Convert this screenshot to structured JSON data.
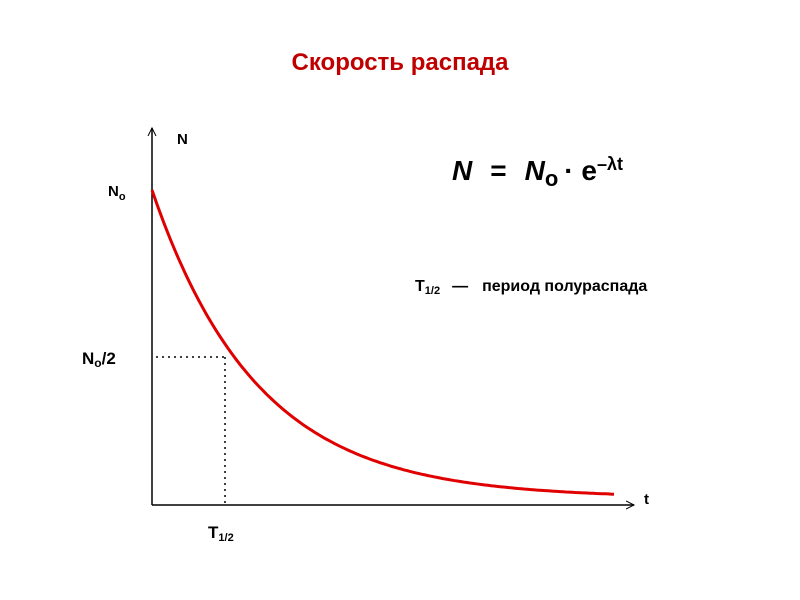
{
  "title": "Скорость распада",
  "axes": {
    "y_label": "N",
    "x_label": "t"
  },
  "labels": {
    "n0": {
      "main": "N",
      "sub": "o"
    },
    "n0_half": {
      "main": "N",
      "sub": "o",
      "suffix": "/2"
    },
    "t_half": {
      "main": "T",
      "sub": "1/2"
    }
  },
  "formula": {
    "lhs": "N",
    "eq": "=",
    "n": "N",
    "sub": "o",
    "dot": "· e",
    "exp": "–λt"
  },
  "legend": {
    "symbol": "T",
    "sub": "1/2",
    "dash": "—",
    "text": "период полураспада"
  }
}
